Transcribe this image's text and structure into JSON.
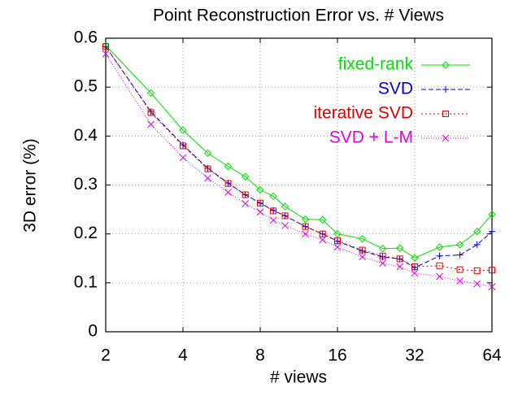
{
  "chart_data": {
    "type": "line",
    "title": "Point Reconstruction Error vs. # Views",
    "x_label": "# views",
    "y_label": "3D error (%)",
    "x": [
      2,
      3,
      4,
      5,
      6,
      7,
      8,
      9,
      10,
      12,
      14,
      16,
      20,
      24,
      28,
      32,
      40,
      48,
      56,
      64
    ],
    "x_scale": "log2",
    "xlim": [
      2,
      64
    ],
    "xticks": [
      2,
      4,
      8,
      16,
      32,
      64
    ],
    "ylim": [
      0,
      0.6
    ],
    "yticks": [
      0,
      0.1,
      0.2,
      0.3,
      0.4,
      0.5,
      0.6
    ],
    "grid": true,
    "legend": "top-right",
    "series": [
      {
        "name": "fixed-rank",
        "color": "#00e000",
        "marker": "diamond",
        "dash": "none",
        "values": [
          0.585,
          0.488,
          0.412,
          0.365,
          0.338,
          0.317,
          0.29,
          0.277,
          0.256,
          0.23,
          0.229,
          0.2,
          0.19,
          0.17,
          0.171,
          0.151,
          0.173,
          0.178,
          0.205,
          0.24
        ]
      },
      {
        "name": "SVD",
        "color": "#0000e0",
        "marker": "plus",
        "dash": "6 3",
        "values": [
          0.583,
          0.45,
          0.382,
          0.334,
          0.304,
          0.28,
          0.263,
          0.248,
          0.237,
          0.215,
          0.2,
          0.185,
          0.165,
          0.153,
          0.149,
          0.131,
          0.155,
          0.157,
          0.178,
          0.205
        ]
      },
      {
        "name": "iterative SVD",
        "color": "#e00000",
        "marker": "square",
        "dash": "2 3",
        "values": [
          0.583,
          0.448,
          0.38,
          0.333,
          0.303,
          0.28,
          0.263,
          0.247,
          0.237,
          0.215,
          0.2,
          0.186,
          0.167,
          0.155,
          0.149,
          0.133,
          0.135,
          0.127,
          0.125,
          0.126
        ]
      },
      {
        "name": "SVD + L-M",
        "color": "#e000e0",
        "marker": "cross",
        "dash": "1 2",
        "values": [
          0.568,
          0.424,
          0.356,
          0.314,
          0.285,
          0.262,
          0.245,
          0.228,
          0.217,
          0.2,
          0.188,
          0.173,
          0.153,
          0.14,
          0.133,
          0.12,
          0.113,
          0.104,
          0.098,
          0.092
        ]
      }
    ]
  }
}
